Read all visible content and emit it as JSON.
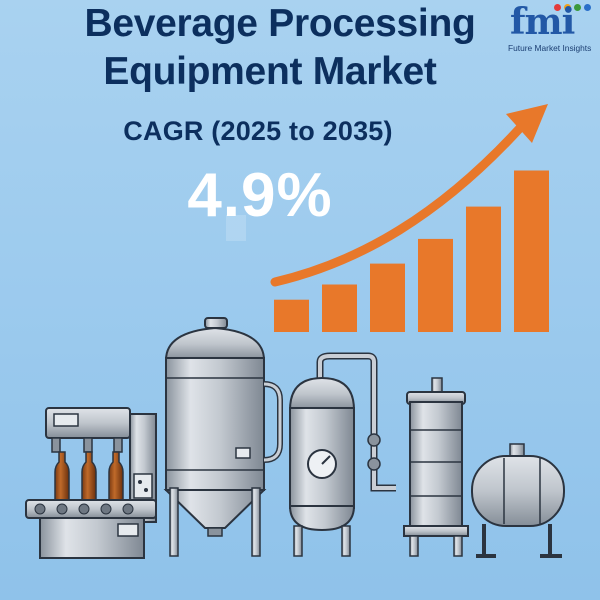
{
  "title_line1": "Beverage Processing",
  "title_line2": "Equipment Market",
  "cagr_label": "CAGR (2025 to 2035)",
  "cagr_value": "4.9%",
  "logo": {
    "mark": "fmi",
    "tagline": "Future Market Insights"
  },
  "colors": {
    "navy": "#0c2f5e",
    "orange": "#e8782a",
    "steel": "#c9ced5",
    "background": "#9dcbee"
  },
  "bar_levels": [
    0.17,
    0.25,
    0.36,
    0.49,
    0.66,
    0.85
  ],
  "icons": [
    "growth-arrow-icon",
    "bar-chart-icon",
    "bottling-machine-icon",
    "fermentation-tank-icon",
    "pressure-vessel-icon",
    "filter-column-icon",
    "storage-tank-icon"
  ]
}
